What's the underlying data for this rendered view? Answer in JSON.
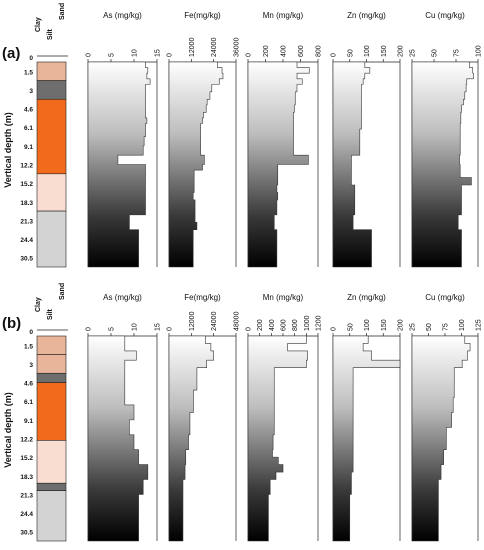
{
  "chart_data": [
    {
      "panel": "(a)",
      "type": "step-profile",
      "y_label": "Vertical depth (m)",
      "depth_ticks": [
        "0",
        "1.5",
        "3",
        "4.6",
        "6.1",
        "9.1",
        "12.2",
        "15.2",
        "18.3",
        "21.3",
        "24.4",
        "30.5"
      ],
      "grain_size_labels": [
        "Clay",
        "Silt",
        "Sand"
      ],
      "lithology": [
        {
          "from": 0,
          "to": 1,
          "class": "clay",
          "color": "#e8b49a"
        },
        {
          "from": 1,
          "to": 2,
          "class": "dark",
          "color": "#6e6e6e"
        },
        {
          "from": 2,
          "to": 6,
          "class": "silt",
          "color": "#f26b1d"
        },
        {
          "from": 6,
          "to": 8,
          "class": "pale",
          "color": "#f8ddd0"
        },
        {
          "from": 8,
          "to": 11,
          "class": "sand",
          "color": "#d3d3d3"
        }
      ],
      "profiles": [
        {
          "title": "As (mg/kg)",
          "ticks": [
            "0",
            "5",
            "10",
            "15"
          ],
          "xlim": [
            0,
            15
          ],
          "depth_edges": [
            0,
            0.3,
            0.6,
            0.9,
            1.2,
            1.6,
            2,
            2.3,
            2.7,
            3,
            3.3,
            3.6,
            4,
            4.5,
            5,
            5.5,
            5.8,
            6.2,
            6.6,
            7,
            7.4,
            7.8,
            8.2,
            8.6,
            9,
            9.4,
            9.8,
            10.1,
            10.5,
            11
          ],
          "values": [
            12.5,
            13,
            12.8,
            13.5,
            12.5,
            12.5,
            12.5,
            12.5,
            12.5,
            12.8,
            12.5,
            12.5,
            12.2,
            12,
            6.5,
            12.5,
            12.5,
            12.5,
            12.5,
            12.5,
            12.5,
            12.5,
            9,
            9,
            11,
            11,
            11,
            11,
            11
          ]
        },
        {
          "title": "Fe(mg/kg)",
          "ticks": [
            "0",
            "12000",
            "24000",
            "36000"
          ],
          "xlim": [
            0,
            36000
          ],
          "depth_edges": [
            0,
            0.3,
            0.6,
            0.9,
            1.2,
            1.6,
            2,
            2.3,
            2.7,
            3,
            3.3,
            3.6,
            4,
            4.5,
            5,
            5.5,
            5.8,
            6.2,
            6.6,
            7,
            7.4,
            7.8,
            8.2,
            8.6,
            9,
            9.4,
            9.8,
            10.1,
            10.5,
            11
          ],
          "values": [
            26000,
            28500,
            29000,
            27000,
            23000,
            22000,
            20500,
            20000,
            18500,
            18000,
            17000,
            17000,
            17000,
            17000,
            19000,
            18000,
            13500,
            13500,
            13500,
            13000,
            14000,
            14000,
            14000,
            15000,
            13000,
            13000,
            13000,
            13000,
            13000
          ]
        },
        {
          "title": "Mn (mg/kg)",
          "ticks": [
            "0",
            "200",
            "400",
            "600",
            "800"
          ],
          "xlim": [
            0,
            800
          ],
          "depth_edges": [
            0,
            0.3,
            0.6,
            0.9,
            1.2,
            1.6,
            2,
            2.3,
            2.7,
            3,
            3.3,
            3.6,
            4,
            4.5,
            5,
            5.5,
            5.8,
            6.2,
            6.6,
            7,
            7.4,
            7.8,
            8.2,
            8.6,
            9,
            9.4,
            9.8,
            10.1,
            10.5,
            11
          ],
          "values": [
            560,
            700,
            560,
            620,
            560,
            540,
            540,
            530,
            520,
            520,
            520,
            520,
            520,
            520,
            690,
            340,
            340,
            340,
            330,
            340,
            330,
            330,
            300,
            300,
            330,
            330,
            330,
            330,
            330
          ]
        },
        {
          "title": "Zn (mg/kg)",
          "ticks": [
            "0",
            "50",
            "100",
            "150",
            "200"
          ],
          "xlim": [
            0,
            200
          ],
          "depth_edges": [
            0,
            0.3,
            0.6,
            0.9,
            1.2,
            1.6,
            2,
            2.3,
            2.7,
            3,
            3.3,
            3.6,
            4,
            4.5,
            5,
            5.5,
            5.8,
            6.2,
            6.6,
            7,
            7.4,
            7.8,
            8.2,
            8.6,
            9,
            9.4,
            9.8,
            10.1,
            10.5,
            11
          ],
          "values": [
            95,
            110,
            95,
            90,
            85,
            85,
            85,
            85,
            85,
            85,
            85,
            80,
            80,
            80,
            55,
            55,
            55,
            55,
            65,
            65,
            65,
            65,
            60,
            60,
            115,
            115,
            115,
            115,
            115
          ]
        },
        {
          "title": "Cu (mg/kg)",
          "ticks": [
            "25",
            "50",
            "75",
            "100"
          ],
          "xlim": [
            0,
            100
          ],
          "depth_edges": [
            0,
            0.3,
            0.6,
            0.9,
            1.2,
            1.6,
            2,
            2.3,
            2.7,
            3,
            3.3,
            3.6,
            4,
            4.5,
            5,
            5.5,
            5.8,
            6.2,
            6.6,
            7,
            7.4,
            7.8,
            8.2,
            8.6,
            9,
            9.4,
            9.8,
            10.1,
            10.5,
            11
          ],
          "values": [
            87,
            92,
            93,
            83,
            82,
            80,
            78,
            75,
            74,
            74,
            73,
            73,
            73,
            73,
            72,
            73,
            73,
            90,
            75,
            75,
            75,
            75,
            70,
            70,
            75,
            75,
            75,
            75,
            75
          ]
        }
      ]
    },
    {
      "panel": "(b)",
      "type": "step-profile",
      "y_label": "Vertical depth (m)",
      "depth_ticks": [
        "0",
        "1.5",
        "3",
        "4.6",
        "6.1",
        "9.1",
        "12.2",
        "15.2",
        "18.3",
        "21.3",
        "24.4",
        "30.5"
      ],
      "grain_size_labels": [
        "Clay",
        "Silt",
        "Sand"
      ],
      "lithology": [
        {
          "from": 0,
          "to": 1,
          "class": "clay",
          "color": "#e8b49a"
        },
        {
          "from": 1,
          "to": 2,
          "class": "clay",
          "color": "#e8b49a"
        },
        {
          "from": 2,
          "to": 2.5,
          "class": "dark",
          "color": "#6e6e6e"
        },
        {
          "from": 2.5,
          "to": 5.6,
          "class": "silt",
          "color": "#f26b1d"
        },
        {
          "from": 5.6,
          "to": 7.9,
          "class": "pale",
          "color": "#f8ddd0"
        },
        {
          "from": 7.9,
          "to": 8.3,
          "class": "dark",
          "color": "#6e6e6e"
        },
        {
          "from": 8.3,
          "to": 11,
          "class": "sand",
          "color": "#d3d3d3"
        }
      ],
      "profiles": [
        {
          "title": "As (mg/kg)",
          "ticks": [
            "0",
            "5",
            "10",
            "15"
          ],
          "xlim": [
            0,
            15
          ],
          "depth_edges": [
            0,
            0.4,
            0.8,
            1.3,
            1.7,
            2.1,
            2.5,
            2.9,
            3.3,
            3.7,
            4.1,
            4.5,
            4.9,
            5.3,
            5.7,
            6.1,
            6.5,
            6.9,
            7.3,
            7.7,
            8.1,
            8.5,
            8.9,
            9.3,
            9.7,
            10.1,
            10.5,
            11
          ],
          "values": [
            8,
            8,
            10.5,
            8,
            8,
            8,
            8,
            8,
            8,
            10,
            10,
            9,
            9,
            10,
            10,
            11,
            11,
            13,
            13,
            12,
            12,
            11,
            11,
            11,
            11,
            11,
            11
          ]
        },
        {
          "title": "Fe(mg/kg)",
          "ticks": [
            "0",
            "12000",
            "24000",
            "48000"
          ],
          "xlim": [
            0,
            48000
          ],
          "depth_edges": [
            0,
            0.4,
            0.8,
            1.3,
            1.7,
            2.1,
            2.5,
            2.9,
            3.3,
            3.7,
            4.1,
            4.5,
            4.9,
            5.3,
            5.7,
            6.1,
            6.5,
            6.9,
            7.3,
            7.7,
            8.1,
            8.5,
            8.9,
            9.3,
            9.7,
            10.1,
            10.5,
            11
          ],
          "values": [
            26000,
            30000,
            32000,
            27000,
            20000,
            20000,
            20000,
            17500,
            17500,
            17500,
            15000,
            15000,
            15000,
            14000,
            14000,
            12000,
            12000,
            11500,
            11500,
            10000,
            10000,
            10000,
            10000,
            10000,
            10000,
            10000,
            10000
          ]
        },
        {
          "title": "Mn (mg/kg)",
          "ticks": [
            "0",
            "200",
            "400",
            "600",
            "800",
            "1000",
            "1200"
          ],
          "xlim": [
            0,
            1200
          ],
          "depth_edges": [
            0,
            0.4,
            0.8,
            1.3,
            1.7,
            2.1,
            2.5,
            2.9,
            3.3,
            3.7,
            4.1,
            4.5,
            4.9,
            5.3,
            5.7,
            6.1,
            6.5,
            6.9,
            7.3,
            7.7,
            8.1,
            8.5,
            8.9,
            9.3,
            9.7,
            10.1,
            10.5,
            11
          ],
          "values": [
            1000,
            680,
            1020,
            1000,
            450,
            450,
            450,
            450,
            450,
            450,
            450,
            450,
            450,
            430,
            430,
            420,
            520,
            600,
            480,
            380,
            380,
            350,
            350,
            350,
            350,
            350,
            350
          ]
        },
        {
          "title": "Zn (mg/kg)",
          "ticks": [
            "0",
            "50",
            "100",
            "150",
            "200"
          ],
          "xlim": [
            0,
            200
          ],
          "depth_edges": [
            0,
            0.4,
            0.8,
            1.3,
            1.7,
            2.1,
            2.5,
            2.9,
            3.3,
            3.7,
            4.1,
            4.5,
            4.9,
            5.3,
            5.7,
            6.1,
            6.5,
            6.9,
            7.3,
            7.7,
            8.1,
            8.5,
            8.9,
            9.3,
            9.7,
            10.1,
            10.5,
            11
          ],
          "values": [
            105,
            90,
            115,
            200,
            60,
            60,
            60,
            60,
            60,
            60,
            60,
            60,
            60,
            60,
            60,
            60,
            60,
            60,
            55,
            55,
            55,
            50,
            50,
            50,
            50,
            50,
            50
          ]
        },
        {
          "title": "Cu (mg/kg)",
          "ticks": [
            "25",
            "50",
            "75",
            "100",
            "125"
          ],
          "xlim": [
            0,
            125
          ],
          "depth_edges": [
            0,
            0.4,
            0.8,
            1.3,
            1.7,
            2.1,
            2.5,
            2.9,
            3.3,
            3.7,
            4.1,
            4.5,
            4.9,
            5.3,
            5.7,
            6.1,
            6.5,
            6.9,
            7.3,
            7.7,
            8.1,
            8.5,
            8.9,
            9.3,
            9.7,
            10.1,
            10.5,
            11
          ],
          "values": [
            100,
            110,
            105,
            95,
            80,
            80,
            80,
            80,
            78,
            78,
            75,
            75,
            65,
            65,
            65,
            60,
            60,
            55,
            55,
            50,
            50,
            50,
            50,
            50,
            50,
            50,
            50
          ]
        }
      ]
    }
  ]
}
